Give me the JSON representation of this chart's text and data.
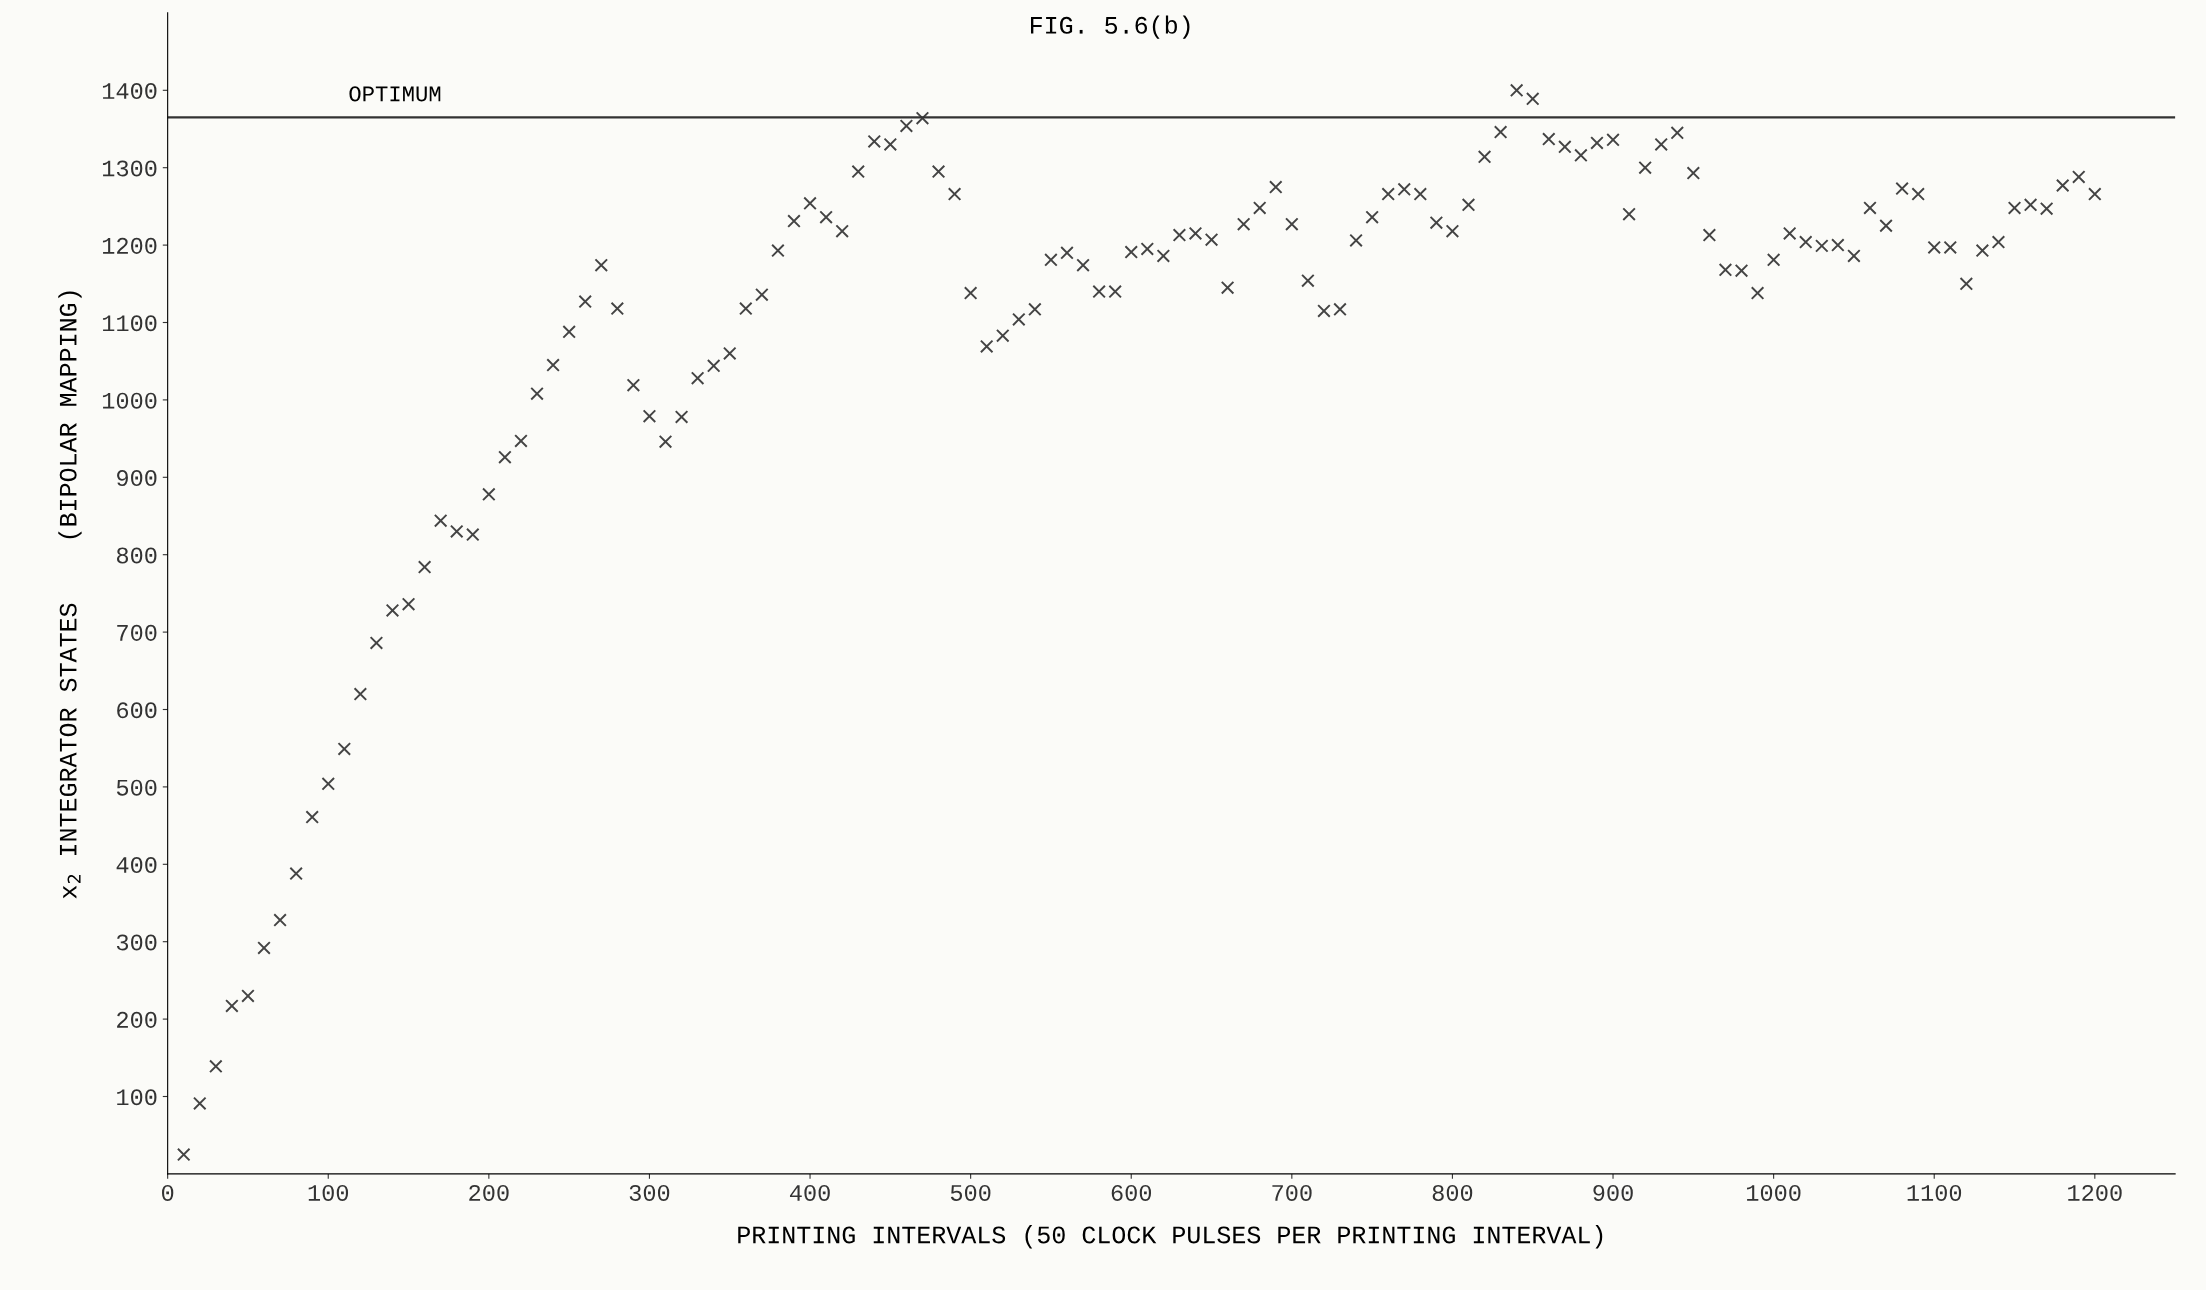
{
  "chart_data": {
    "type": "scatter",
    "title": "FIG. 5.6(b)",
    "xlabel": "PRINTING INTERVALS (50 CLOCK PULSES PER PRINTING INTERVAL)",
    "ylabel": "x$_{2}$ INTEGRATOR STATES    (BIPOLAR MAPPING)",
    "x": [
      10,
      20,
      30,
      40,
      50,
      60,
      70,
      80,
      90,
      100,
      110,
      120,
      130,
      140,
      150,
      160,
      170,
      180,
      190,
      200,
      210,
      220,
      230,
      240,
      250,
      260,
      270,
      280,
      290,
      300,
      310,
      320,
      330,
      340,
      350,
      360,
      370,
      380,
      390,
      400,
      410,
      420,
      430,
      440,
      450,
      460,
      470,
      480,
      490,
      500,
      510,
      520,
      530,
      540,
      550,
      560,
      570,
      580,
      590,
      600,
      610,
      620,
      630,
      640,
      650,
      660,
      670,
      680,
      690,
      700,
      710,
      720,
      730,
      740,
      750,
      760,
      770,
      780,
      790,
      800,
      810,
      820,
      830,
      840,
      850,
      860,
      870,
      880,
      890,
      900,
      910,
      920,
      930,
      940,
      950,
      960,
      970,
      980,
      990,
      1000,
      1010,
      1020,
      1030,
      1040,
      1050,
      1060,
      1070,
      1080,
      1090,
      1100,
      1110,
      1120,
      1130,
      1140,
      1150,
      1160,
      1170,
      1180,
      1190,
      1200
    ],
    "series": [
      {
        "color": "#444444",
        "values": [
          25,
          91,
          139,
          217,
          230,
          292,
          328,
          388,
          461,
          504,
          549,
          620,
          686,
          728,
          736,
          784,
          844,
          830,
          826,
          878,
          926,
          947,
          1008,
          1045,
          1088,
          1127,
          1174,
          1118,
          1019,
          979,
          946,
          978,
          1028,
          1044,
          1060,
          1118,
          1136,
          1193,
          1231,
          1254,
          1236,
          1218,
          1295,
          1334,
          1330,
          1354,
          1364,
          1295,
          1266,
          1138,
          1069,
          1083,
          1104,
          1117,
          1181,
          1190,
          1174,
          1140,
          1140,
          1191,
          1195,
          1186,
          1213,
          1215,
          1207,
          1145,
          1227,
          1248,
          1275,
          1227,
          1154,
          1115,
          1117,
          1206,
          1236,
          1266,
          1272,
          1266,
          1229,
          1218,
          1252,
          1314,
          1346,
          1400,
          1389,
          1337,
          1327,
          1316,
          1332,
          1336,
          1240,
          1300,
          1330,
          1345,
          1293,
          1213,
          1168,
          1167,
          1138,
          1181,
          1215,
          1204,
          1199,
          1200,
          1186,
          1248,
          1225,
          1273,
          1266,
          1197,
          1197,
          1150,
          1193,
          1204,
          1248,
          1252,
          1247,
          1277,
          1288,
          1266
        ]
      }
    ],
    "xlim": [
      0,
      1250
    ],
    "ylim": [
      0,
      1500
    ],
    "xticks": [
      0,
      100,
      200,
      300,
      400,
      500,
      600,
      700,
      800,
      900,
      1000,
      1100,
      1200
    ],
    "yticks": [
      100,
      200,
      300,
      400,
      500,
      600,
      700,
      800,
      900,
      1000,
      1100,
      1200,
      1300,
      1400
    ],
    "ref_lines": [
      {
        "axis": "y",
        "value": 1365,
        "label": "OPTIMUM",
        "color": "#333333"
      }
    ],
    "marker": "cross",
    "grid": false,
    "legend": false
  }
}
